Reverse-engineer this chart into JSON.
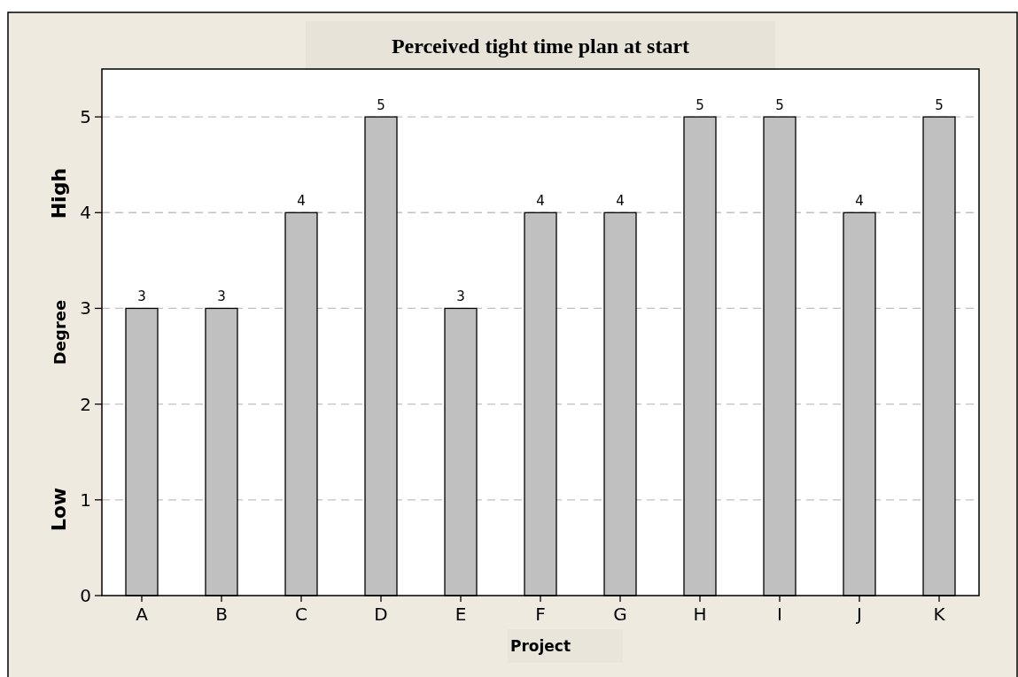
{
  "chart_data": {
    "type": "bar",
    "title": "Perceived tight time plan at start",
    "xlabel": "Project",
    "ylabel": "Degree",
    "categories": [
      "A",
      "B",
      "C",
      "D",
      "E",
      "F",
      "G",
      "H",
      "I",
      "J",
      "K"
    ],
    "values": [
      3,
      3,
      4,
      5,
      3,
      4,
      4,
      5,
      5,
      4,
      5
    ],
    "color": "#c0c0c0",
    "ylim": [
      0,
      5.5
    ],
    "yticks": [
      0,
      1,
      2,
      3,
      4,
      5
    ],
    "grid": "y",
    "data_labels": true,
    "annotations": [
      "High",
      "Low"
    ]
  }
}
